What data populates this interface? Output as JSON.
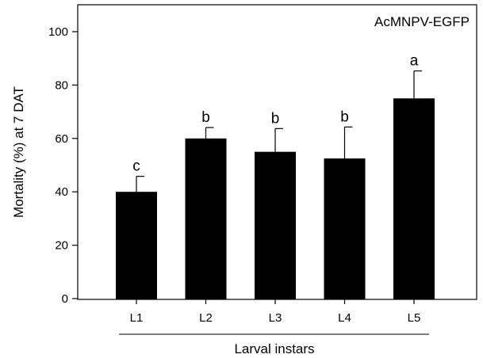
{
  "chart_data": {
    "type": "bar",
    "title": "",
    "panel_label": "AcMNPV-EGFP",
    "xlabel": "Larval instars",
    "ylabel": "Mortality (%) at 7 DAT",
    "ylim": [
      0,
      110
    ],
    "yticks": [
      0,
      20,
      40,
      60,
      80,
      100
    ],
    "categories": [
      "L1",
      "L2",
      "L3",
      "L4",
      "L5"
    ],
    "series": [
      {
        "values": [
          40,
          60,
          55,
          52.5,
          75
        ],
        "error_plus": [
          5.8,
          4.1,
          8.7,
          11.8,
          10.3
        ],
        "significance": [
          "c",
          "b",
          "b",
          "b",
          "a"
        ]
      }
    ],
    "bar_color": "#000000",
    "grid": false,
    "legend": "none"
  }
}
